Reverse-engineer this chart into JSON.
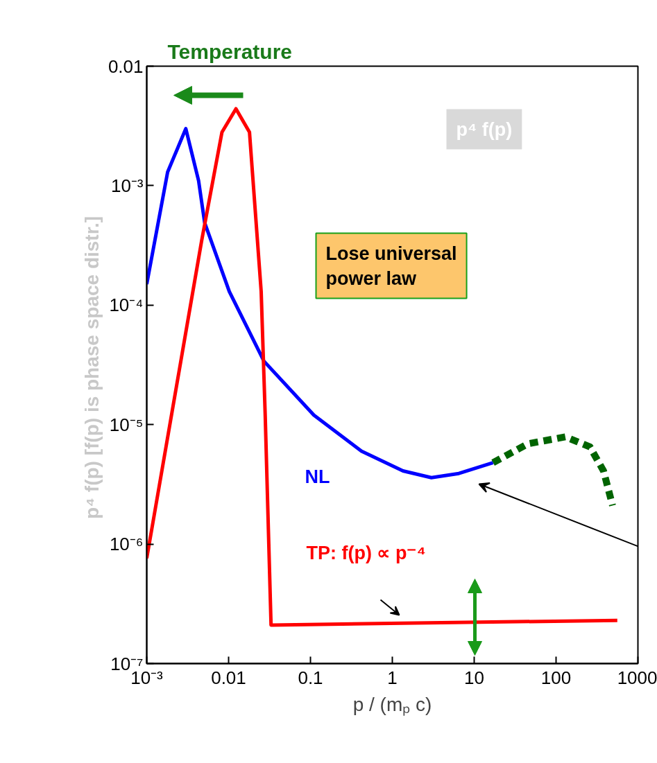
{
  "chart_data": {
    "type": "line",
    "title": "Temperature",
    "xlabel": "p / (mₚ c)",
    "ylabel": "p⁴ f(p)  [f(p) is phase space distr.]",
    "log": "xy",
    "grid": false,
    "line_style": "solid",
    "marker": "none",
    "xlim": [
      0.001,
      1000
    ],
    "ylim": [
      1e-07,
      0.01
    ],
    "xticks": [
      {
        "value": 0.001,
        "label": "10⁻³"
      },
      0.01,
      0.1,
      1,
      10,
      100,
      1000
    ],
    "yticks": [
      {
        "value": 1e-07,
        "label": "10⁻⁷"
      },
      {
        "value": 1e-06,
        "label": "10⁻⁶"
      },
      {
        "value": 1e-05,
        "label": "10⁻⁵"
      },
      {
        "value": 0.0001,
        "label": "10⁻⁴"
      },
      {
        "value": 0.001,
        "label": "10⁻³"
      },
      0.01
    ],
    "series": [
      {
        "color": "#0000ff",
        "x": [
          0.001,
          0.0018,
          0.003,
          0.0043,
          0.0051,
          0.0102,
          0.027,
          0.11,
          0.42,
          1.35,
          3.0,
          6.5,
          17
        ],
        "values": [
          0.00015,
          0.0013,
          0.003,
          0.0011,
          0.00049,
          0.00013,
          3.4e-05,
          1.2e-05,
          6e-06,
          4.1e-06,
          3.6e-06,
          3.9e-06,
          4.8e-06
        ]
      },
      {
        "color": "#006400",
        "line_style": "dashed",
        "x": [
          17,
          45,
          130,
          260,
          380,
          490
        ],
        "values": [
          4.8e-06,
          6.9e-06,
          7.9e-06,
          6.5e-06,
          4.1e-06,
          2.1e-06
        ]
      },
      {
        "color": "#ff0000",
        "x": [
          0.001,
          0.0047,
          0.0083,
          0.0123,
          0.018,
          0.025,
          0.028,
          0.033,
          0.034,
          560
        ],
        "values": [
          7.6e-07,
          0.00035,
          0.0028,
          0.0044,
          0.0028,
          0.00013,
          1.2e-05,
          2.1e-07,
          2.1e-07,
          2.3e-07
        ]
      }
    ],
    "annotations": [
      "p⁴ f(p)",
      "Lose universal power law",
      "NL",
      "TP: f(p) ∝ p⁻⁴"
    ]
  }
}
